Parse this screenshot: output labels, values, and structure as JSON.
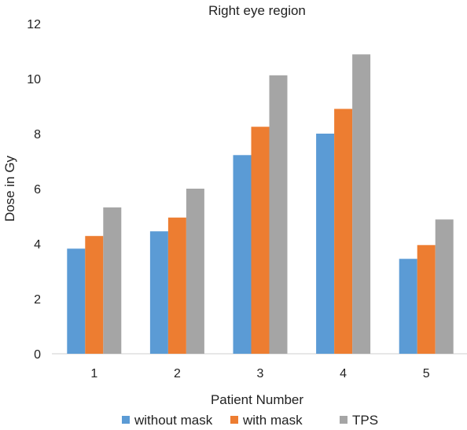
{
  "chart_data": {
    "type": "bar",
    "title": "Right eye region",
    "xlabel": "Patient Number",
    "ylabel": "Dose in Gy",
    "categories": [
      "1",
      "2",
      "3",
      "4",
      "5"
    ],
    "ylim": [
      0,
      12
    ],
    "yticks": [
      "0",
      "2",
      "4",
      "6",
      "8",
      "10",
      "12"
    ],
    "grid": false,
    "legend_position": "bottom",
    "series": [
      {
        "name": "without mask",
        "color": "#5B9BD5",
        "values": [
          3.82,
          4.45,
          7.22,
          8.0,
          3.45
        ]
      },
      {
        "name": "with mask",
        "color": "#ED7D31",
        "values": [
          4.28,
          4.95,
          8.25,
          8.9,
          3.95
        ]
      },
      {
        "name": "TPS",
        "color": "#A5A5A5",
        "values": [
          5.32,
          6.0,
          10.12,
          10.88,
          4.88
        ]
      }
    ]
  }
}
